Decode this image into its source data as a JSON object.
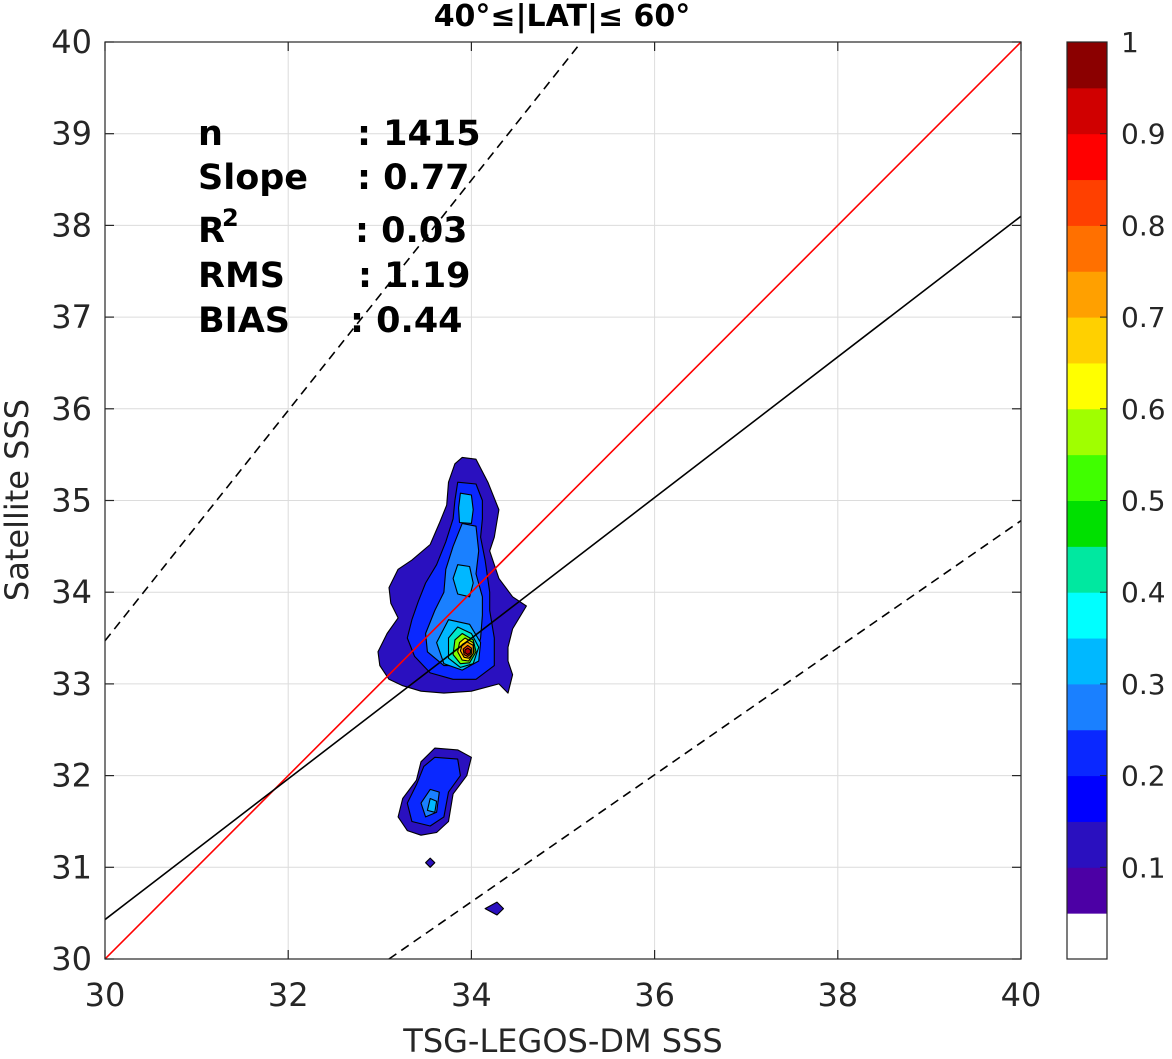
{
  "chart_data": {
    "type": "contour",
    "title": "40°≤|LAT|≤ 60°",
    "xlabel": "TSG-LEGOS-DM SSS",
    "ylabel": "Satellite SSS",
    "xlim": [
      30,
      40
    ],
    "ylim": [
      30,
      40
    ],
    "xticks": [
      "30",
      "32",
      "34",
      "36",
      "38",
      "40"
    ],
    "yticks": [
      "30",
      "31",
      "32",
      "33",
      "34",
      "35",
      "36",
      "37",
      "38",
      "39",
      "40"
    ],
    "grid": true,
    "stats": {
      "n_label": "n",
      "n_value": ": 1415",
      "slope_label": "Slope",
      "slope_value": ": 0.77",
      "r2_label": "R",
      "r2_sup": "2",
      "r2_value": ": 0.03",
      "rms_label": "RMS",
      "rms_value": ": 1.19",
      "bias_label": "BIAS",
      "bias_value": ": 0.44"
    },
    "reference_lines": [
      {
        "name": "1:1",
        "style": "solid",
        "color": "#ff0000",
        "points": [
          [
            30,
            30
          ],
          [
            40,
            40
          ]
        ]
      },
      {
        "name": "regression",
        "style": "solid",
        "color": "#000000",
        "points": [
          [
            30,
            30.43
          ],
          [
            40,
            38.1
          ]
        ]
      },
      {
        "name": "upper-bound",
        "style": "dashed",
        "color": "#000000",
        "points": [
          [
            30,
            33.47
          ],
          [
            35.2,
            40
          ]
        ]
      },
      {
        "name": "lower-bound",
        "style": "dashed",
        "color": "#000000",
        "points": [
          [
            33.1,
            30
          ],
          [
            40,
            34.78
          ]
        ]
      }
    ],
    "density_contours": {
      "peak": [
        33.95,
        33.35
      ],
      "levels": [
        {
          "level": 0.05,
          "fill": "#2a10bf",
          "polygons": [
            [
              [
                33.9,
                35.47
              ],
              [
                34.05,
                35.45
              ],
              [
                34.18,
                35.2
              ],
              [
                34.3,
                34.9
              ],
              [
                34.25,
                34.6
              ],
              [
                34.2,
                34.45
              ],
              [
                34.3,
                34.15
              ],
              [
                34.45,
                33.95
              ],
              [
                34.6,
                33.85
              ],
              [
                34.45,
                33.6
              ],
              [
                34.4,
                33.4
              ],
              [
                34.4,
                33.25
              ],
              [
                34.45,
                33.1
              ],
              [
                34.4,
                32.9
              ],
              [
                34.3,
                33.0
              ],
              [
                34.0,
                32.92
              ],
              [
                33.7,
                32.9
              ],
              [
                33.45,
                32.92
              ],
              [
                33.25,
                32.98
              ],
              [
                33.1,
                33.05
              ],
              [
                33.0,
                33.2
              ],
              [
                32.98,
                33.35
              ],
              [
                33.08,
                33.55
              ],
              [
                33.2,
                33.72
              ],
              [
                33.12,
                33.88
              ],
              [
                33.1,
                34.05
              ],
              [
                33.2,
                34.25
              ],
              [
                33.35,
                34.35
              ],
              [
                33.55,
                34.52
              ],
              [
                33.65,
                34.75
              ],
              [
                33.73,
                34.95
              ],
              [
                33.75,
                35.2
              ],
              [
                33.82,
                35.4
              ]
            ],
            [
              [
                33.6,
                32.3
              ],
              [
                33.85,
                32.28
              ],
              [
                34.0,
                32.2
              ],
              [
                33.95,
                32.0
              ],
              [
                33.8,
                31.8
              ],
              [
                33.75,
                31.5
              ],
              [
                33.62,
                31.38
              ],
              [
                33.45,
                31.35
              ],
              [
                33.3,
                31.4
              ],
              [
                33.2,
                31.55
              ],
              [
                33.25,
                31.75
              ],
              [
                33.4,
                31.95
              ],
              [
                33.45,
                32.15
              ]
            ],
            [
              [
                33.5,
                31.05
              ],
              [
                33.55,
                31.1
              ],
              [
                33.6,
                31.05
              ],
              [
                33.55,
                31.0
              ]
            ],
            [
              [
                34.15,
                30.55
              ],
              [
                34.28,
                30.62
              ],
              [
                34.35,
                30.55
              ],
              [
                34.28,
                30.48
              ]
            ]
          ]
        },
        {
          "level": 0.15,
          "fill": "#0a28ff",
          "polygons": [
            [
              [
                33.85,
                35.2
              ],
              [
                34.05,
                35.18
              ],
              [
                34.12,
                35.0
              ],
              [
                34.12,
                34.8
              ],
              [
                34.1,
                34.6
              ],
              [
                34.15,
                34.35
              ],
              [
                34.2,
                34.0
              ],
              [
                34.2,
                33.8
              ],
              [
                34.25,
                33.5
              ],
              [
                34.25,
                33.2
              ],
              [
                34.05,
                33.05
              ],
              [
                33.8,
                33.05
              ],
              [
                33.55,
                33.12
              ],
              [
                33.38,
                33.3
              ],
              [
                33.3,
                33.5
              ],
              [
                33.35,
                33.7
              ],
              [
                33.42,
                33.9
              ],
              [
                33.5,
                34.1
              ],
              [
                33.62,
                34.3
              ],
              [
                33.72,
                34.55
              ],
              [
                33.8,
                34.8
              ],
              [
                33.82,
                35.0
              ]
            ],
            [
              [
                33.6,
                32.2
              ],
              [
                33.85,
                32.18
              ],
              [
                33.88,
                32.0
              ],
              [
                33.75,
                31.82
              ],
              [
                33.7,
                31.55
              ],
              [
                33.55,
                31.45
              ],
              [
                33.35,
                31.5
              ],
              [
                33.3,
                31.7
              ],
              [
                33.4,
                31.9
              ],
              [
                33.48,
                32.1
              ]
            ]
          ]
        },
        {
          "level": 0.25,
          "fill": "#1a80ff",
          "polygons": [
            [
              [
                33.9,
                34.75
              ],
              [
                34.05,
                34.72
              ],
              [
                34.08,
                34.45
              ],
              [
                34.05,
                34.2
              ],
              [
                34.12,
                33.95
              ],
              [
                34.12,
                33.75
              ],
              [
                34.1,
                33.5
              ],
              [
                34.05,
                33.3
              ],
              [
                33.9,
                33.2
              ],
              [
                33.7,
                33.2
              ],
              [
                33.52,
                33.35
              ],
              [
                33.5,
                33.55
              ],
              [
                33.6,
                33.8
              ],
              [
                33.7,
                34.0
              ],
              [
                33.72,
                34.25
              ],
              [
                33.8,
                34.5
              ]
            ],
            [
              [
                33.55,
                31.85
              ],
              [
                33.65,
                31.82
              ],
              [
                33.62,
                31.6
              ],
              [
                33.5,
                31.55
              ],
              [
                33.45,
                31.7
              ]
            ]
          ]
        },
        {
          "level": 0.35,
          "fill": "#00b8ff",
          "polygons": [
            [
              [
                33.88,
                35.08
              ],
              [
                34.0,
                35.06
              ],
              [
                34.02,
                34.9
              ],
              [
                34.0,
                34.75
              ],
              [
                33.87,
                34.76
              ],
              [
                33.86,
                34.92
              ]
            ],
            [
              [
                33.85,
                34.3
              ],
              [
                33.98,
                34.28
              ],
              [
                34.02,
                34.1
              ],
              [
                33.98,
                33.95
              ],
              [
                33.85,
                33.98
              ],
              [
                33.8,
                34.15
              ]
            ],
            [
              [
                33.75,
                33.7
              ],
              [
                33.98,
                33.65
              ],
              [
                34.1,
                33.45
              ],
              [
                34.08,
                33.25
              ],
              [
                33.9,
                33.15
              ],
              [
                33.7,
                33.22
              ],
              [
                33.62,
                33.45
              ]
            ],
            [
              [
                33.55,
                31.75
              ],
              [
                33.62,
                31.72
              ],
              [
                33.6,
                31.6
              ],
              [
                33.52,
                31.62
              ]
            ]
          ]
        },
        {
          "level": 0.45,
          "fill": "#00e8c8",
          "polygons": [
            [
              [
                33.85,
                33.62
              ],
              [
                34.0,
                33.55
              ],
              [
                34.08,
                33.4
              ],
              [
                34.02,
                33.22
              ],
              [
                33.88,
                33.18
              ],
              [
                33.75,
                33.28
              ],
              [
                33.75,
                33.5
              ]
            ]
          ]
        },
        {
          "level": 0.55,
          "fill": "#7fff00",
          "polygons": [
            [
              [
                33.9,
                33.55
              ],
              [
                34.02,
                33.48
              ],
              [
                34.05,
                33.35
              ],
              [
                33.98,
                33.23
              ],
              [
                33.88,
                33.22
              ],
              [
                33.8,
                33.32
              ],
              [
                33.82,
                33.48
              ]
            ]
          ]
        },
        {
          "level": 0.65,
          "fill": "#ffe600",
          "polygons": [
            [
              [
                33.93,
                33.5
              ],
              [
                34.02,
                33.45
              ],
              [
                34.03,
                33.35
              ],
              [
                33.97,
                33.25
              ],
              [
                33.9,
                33.26
              ],
              [
                33.85,
                33.35
              ],
              [
                33.87,
                33.45
              ]
            ]
          ]
        },
        {
          "level": 0.75,
          "fill": "#ffa000",
          "polygons": [
            [
              [
                33.95,
                33.46
              ],
              [
                34.02,
                33.42
              ],
              [
                34.02,
                33.33
              ],
              [
                33.97,
                33.28
              ],
              [
                33.92,
                33.29
              ],
              [
                33.88,
                33.36
              ],
              [
                33.9,
                33.43
              ]
            ]
          ]
        },
        {
          "level": 0.85,
          "fill": "#ff3000",
          "polygons": [
            [
              [
                33.96,
                33.42
              ],
              [
                34.0,
                33.39
              ],
              [
                34.0,
                33.33
              ],
              [
                33.96,
                33.3
              ],
              [
                33.92,
                33.32
              ],
              [
                33.91,
                33.38
              ]
            ]
          ]
        },
        {
          "level": 0.95,
          "fill": "#b00000",
          "polygons": [
            [
              [
                33.96,
                33.39
              ],
              [
                33.99,
                33.37
              ],
              [
                33.99,
                33.34
              ],
              [
                33.96,
                33.32
              ],
              [
                33.93,
                33.34
              ],
              [
                33.93,
                33.37
              ]
            ]
          ]
        }
      ]
    },
    "colorbar": {
      "labels": [
        "1",
        "0.9",
        "0.8",
        "0.7",
        "0.6",
        "0.5",
        "0.4",
        "0.3",
        "0.2",
        "0.1"
      ],
      "range": [
        0,
        1
      ],
      "colors": [
        "#ffffff",
        "#4c00a5",
        "#2a10bf",
        "#0000ff",
        "#0a28ff",
        "#1a80ff",
        "#00b8ff",
        "#00ffff",
        "#00e8a0",
        "#00e000",
        "#40ff00",
        "#a0ff00",
        "#ffff00",
        "#ffd000",
        "#ffa000",
        "#ff7000",
        "#ff4000",
        "#ff0000",
        "#d00000",
        "#8b0000"
      ]
    }
  }
}
